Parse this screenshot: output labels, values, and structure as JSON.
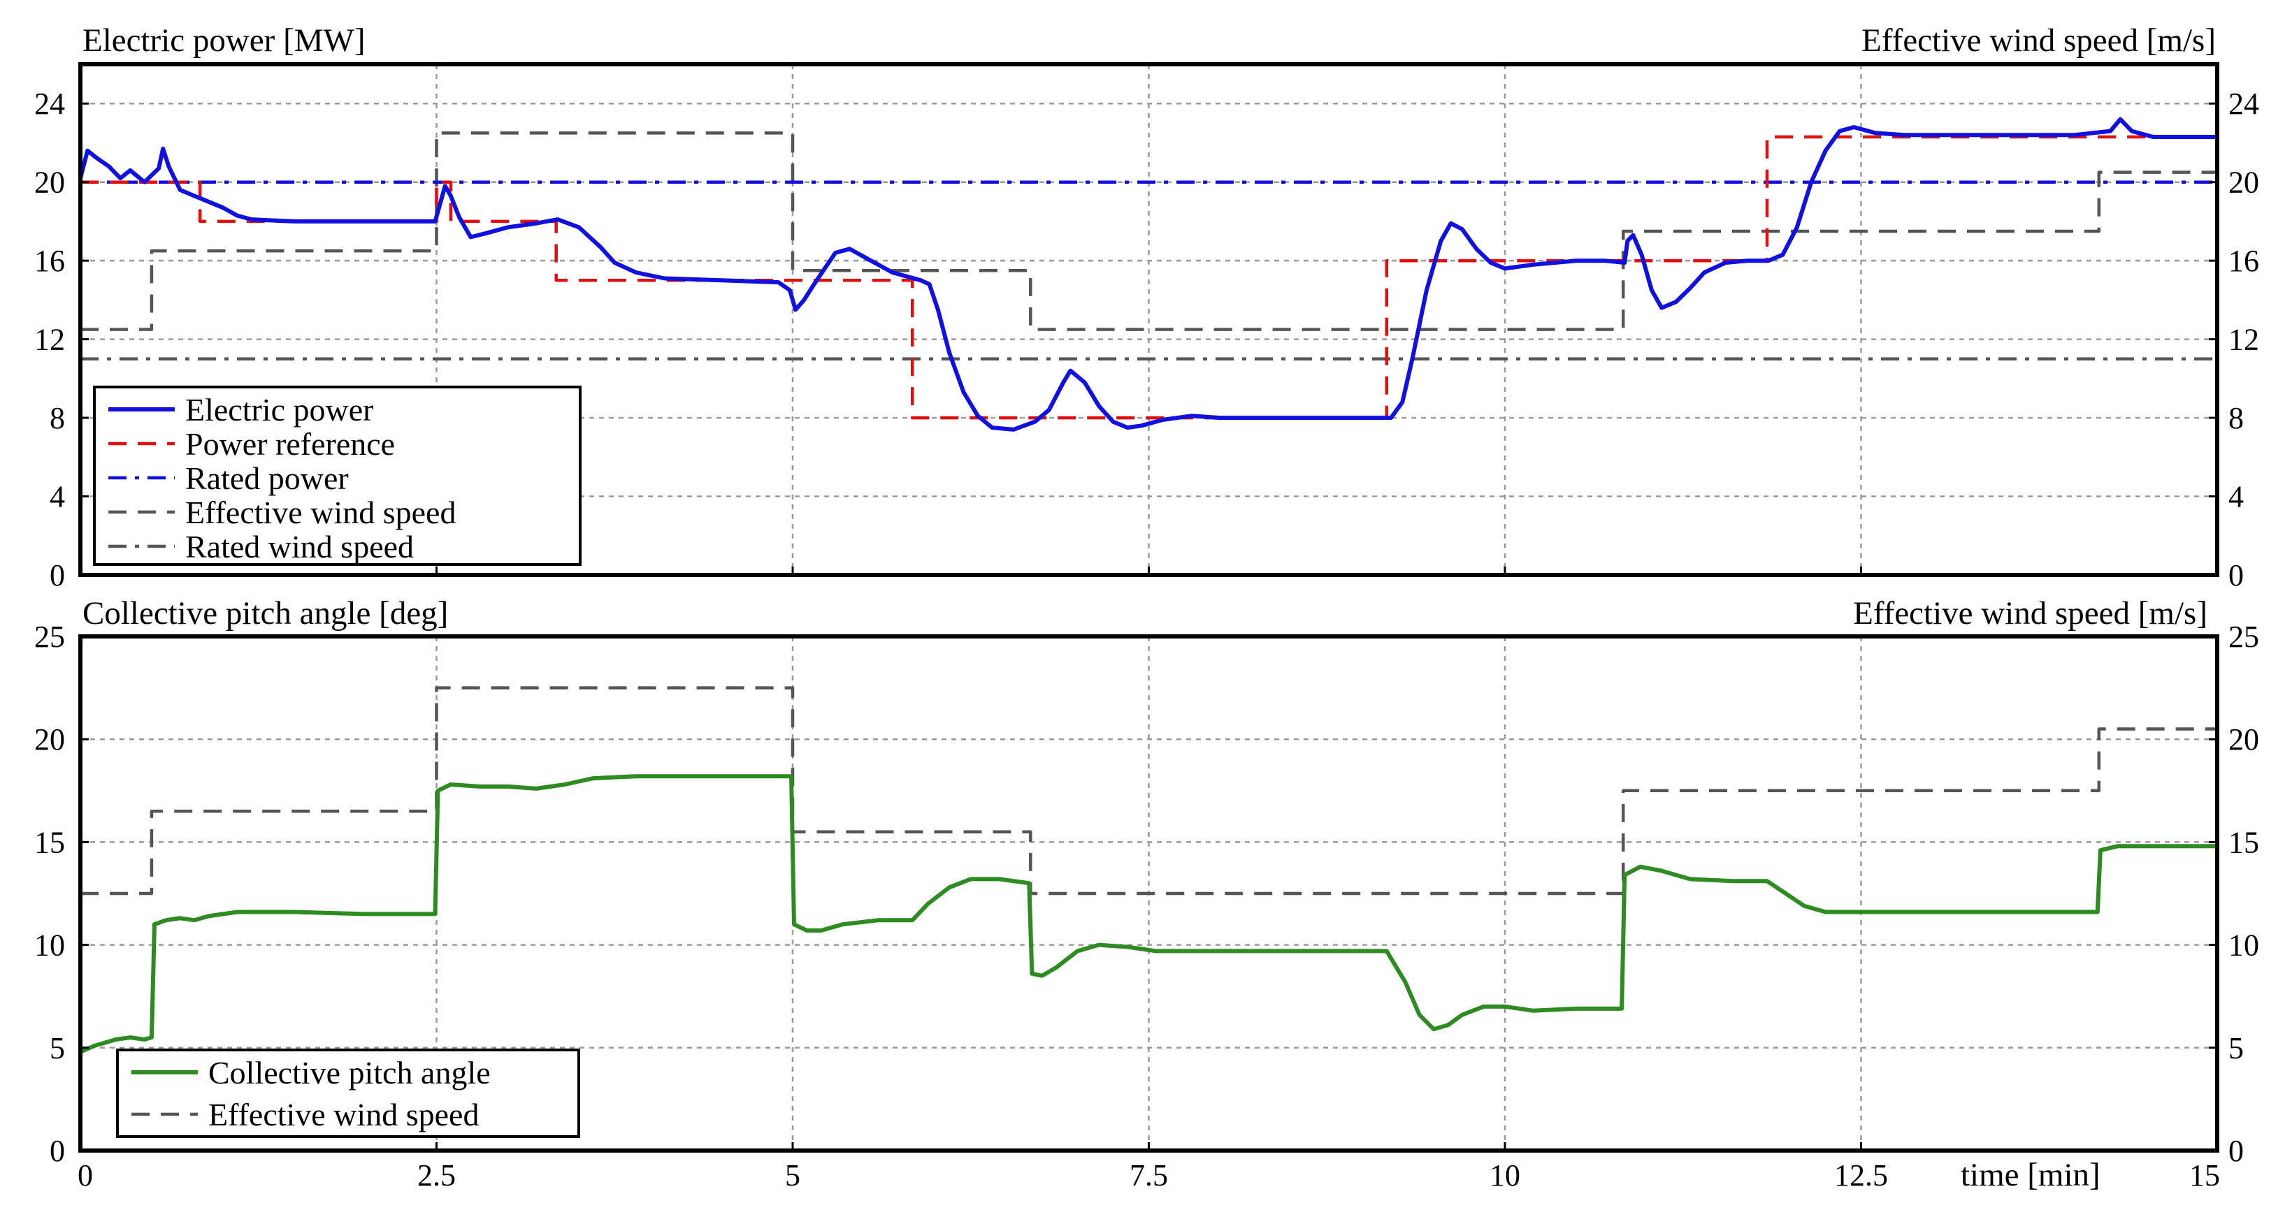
{
  "chart_data": [
    {
      "type": "line",
      "title_left": "Electric power [MW]",
      "title_right": "Effective wind speed [m/s]",
      "x_range": [
        0,
        15
      ],
      "y_range": [
        0,
        26
      ],
      "y_ticks": [
        0,
        4,
        8,
        12,
        16,
        20,
        24
      ],
      "y_tick_labels": [
        "0",
        "4",
        "8",
        "12",
        "16",
        "20",
        "24"
      ],
      "y_right_ticks": [
        0,
        4,
        8,
        12,
        16,
        20,
        24
      ],
      "y_right_tick_labels": [
        "0",
        "4",
        "8",
        "12",
        "16",
        "20",
        "24"
      ],
      "grid": true,
      "legend_position": "bottom-left",
      "series": [
        {
          "name": "Electric power",
          "color": "#1010e0",
          "style": "solid",
          "points": [
            [
              0,
              20.2
            ],
            [
              0.05,
              21.6
            ],
            [
              0.12,
              21.2
            ],
            [
              0.2,
              20.8
            ],
            [
              0.28,
              20.2
            ],
            [
              0.35,
              20.6
            ],
            [
              0.45,
              20.0
            ],
            [
              0.55,
              20.7
            ],
            [
              0.58,
              21.7
            ],
            [
              0.62,
              20.8
            ],
            [
              0.7,
              19.6
            ],
            [
              0.8,
              19.3
            ],
            [
              0.9,
              19.0
            ],
            [
              1.0,
              18.7
            ],
            [
              1.1,
              18.3
            ],
            [
              1.2,
              18.1
            ],
            [
              1.5,
              18.0
            ],
            [
              2.0,
              18.0
            ],
            [
              2.49,
              18.0
            ],
            [
              2.51,
              18.5
            ],
            [
              2.56,
              19.8
            ],
            [
              2.6,
              19.3
            ],
            [
              2.66,
              18.2
            ],
            [
              2.74,
              17.2
            ],
            [
              2.85,
              17.4
            ],
            [
              3.0,
              17.7
            ],
            [
              3.2,
              17.9
            ],
            [
              3.35,
              18.1
            ],
            [
              3.5,
              17.7
            ],
            [
              3.65,
              16.7
            ],
            [
              3.75,
              15.9
            ],
            [
              3.9,
              15.4
            ],
            [
              4.1,
              15.1
            ],
            [
              4.5,
              15.0
            ],
            [
              4.9,
              14.9
            ],
            [
              4.98,
              14.5
            ],
            [
              5.02,
              13.5
            ],
            [
              5.08,
              14.0
            ],
            [
              5.15,
              14.8
            ],
            [
              5.3,
              16.4
            ],
            [
              5.4,
              16.6
            ],
            [
              5.55,
              16.0
            ],
            [
              5.7,
              15.4
            ],
            [
              5.9,
              15.0
            ],
            [
              5.96,
              14.8
            ],
            [
              6.02,
              13.5
            ],
            [
              6.1,
              11.3
            ],
            [
              6.2,
              9.3
            ],
            [
              6.3,
              8.1
            ],
            [
              6.4,
              7.5
            ],
            [
              6.55,
              7.4
            ],
            [
              6.7,
              7.8
            ],
            [
              6.8,
              8.4
            ],
            [
              6.9,
              9.8
            ],
            [
              6.95,
              10.4
            ],
            [
              7.05,
              9.8
            ],
            [
              7.15,
              8.6
            ],
            [
              7.25,
              7.8
            ],
            [
              7.35,
              7.5
            ],
            [
              7.45,
              7.6
            ],
            [
              7.6,
              7.9
            ],
            [
              7.8,
              8.1
            ],
            [
              8.0,
              8.0
            ],
            [
              8.5,
              8.0
            ],
            [
              9.0,
              8.0
            ],
            [
              9.2,
              8.0
            ],
            [
              9.28,
              8.8
            ],
            [
              9.35,
              11.0
            ],
            [
              9.45,
              14.5
            ],
            [
              9.55,
              17.0
            ],
            [
              9.62,
              17.9
            ],
            [
              9.7,
              17.6
            ],
            [
              9.8,
              16.6
            ],
            [
              9.9,
              15.9
            ],
            [
              10.0,
              15.6
            ],
            [
              10.2,
              15.8
            ],
            [
              10.5,
              16.0
            ],
            [
              10.7,
              16.0
            ],
            [
              10.84,
              15.9
            ],
            [
              10.86,
              17.0
            ],
            [
              10.9,
              17.3
            ],
            [
              10.96,
              16.3
            ],
            [
              11.03,
              14.5
            ],
            [
              11.1,
              13.6
            ],
            [
              11.2,
              13.9
            ],
            [
              11.3,
              14.6
            ],
            [
              11.4,
              15.4
            ],
            [
              11.55,
              15.9
            ],
            [
              11.7,
              16.0
            ],
            [
              11.85,
              16.0
            ],
            [
              11.95,
              16.3
            ],
            [
              12.05,
              17.7
            ],
            [
              12.15,
              20.0
            ],
            [
              12.25,
              21.6
            ],
            [
              12.35,
              22.6
            ],
            [
              12.45,
              22.8
            ],
            [
              12.6,
              22.5
            ],
            [
              12.8,
              22.4
            ],
            [
              13.0,
              22.4
            ],
            [
              13.5,
              22.4
            ],
            [
              14.0,
              22.4
            ],
            [
              14.25,
              22.6
            ],
            [
              14.32,
              23.2
            ],
            [
              14.4,
              22.6
            ],
            [
              14.55,
              22.3
            ],
            [
              14.8,
              22.3
            ],
            [
              15.0,
              22.3
            ]
          ]
        },
        {
          "name": "Power reference",
          "color": "#e01010",
          "style": "dashed",
          "points": [
            [
              0,
              20
            ],
            [
              0.84,
              20
            ],
            [
              0.84,
              18
            ],
            [
              2.5,
              18
            ],
            [
              2.5,
              20
            ],
            [
              2.6,
              20
            ],
            [
              2.6,
              18
            ],
            [
              3.34,
              18
            ],
            [
              3.34,
              15
            ],
            [
              5.84,
              15
            ],
            [
              5.84,
              8
            ],
            [
              9.17,
              8
            ],
            [
              9.17,
              16
            ],
            [
              11.84,
              16
            ],
            [
              11.84,
              22.3
            ],
            [
              15,
              22.3
            ]
          ]
        },
        {
          "name": "Rated power",
          "color": "#1010e0",
          "style": "dashdot",
          "points": [
            [
              0,
              20
            ],
            [
              15,
              20
            ]
          ]
        },
        {
          "name": "Effective wind speed",
          "color": "#555555",
          "style": "dashed",
          "points": [
            [
              0,
              12.5
            ],
            [
              0.5,
              12.5
            ],
            [
              0.5,
              16.5
            ],
            [
              2.5,
              16.5
            ],
            [
              2.5,
              22.5
            ],
            [
              5.0,
              22.5
            ],
            [
              5.0,
              15.5
            ],
            [
              6.67,
              15.5
            ],
            [
              6.67,
              12.5
            ],
            [
              10.83,
              12.5
            ],
            [
              10.83,
              17.5
            ],
            [
              14.17,
              17.5
            ],
            [
              14.17,
              20.5
            ],
            [
              15,
              20.5
            ]
          ]
        },
        {
          "name": "Rated wind speed",
          "color": "#555555",
          "style": "dashdot",
          "points": [
            [
              0,
              11
            ],
            [
              15,
              11
            ]
          ]
        }
      ]
    },
    {
      "type": "line",
      "title_left": "Collective pitch angle [deg]",
      "title_right": "Effective wind speed [m/s]",
      "x_range": [
        0,
        15
      ],
      "y_range": [
        0,
        25
      ],
      "x_ticks": [
        0,
        2.5,
        5,
        7.5,
        10,
        12.5,
        15
      ],
      "x_tick_labels": [
        "0",
        "2.5",
        "5",
        "7.5",
        "10",
        "12.5",
        "15"
      ],
      "xlabel": "time [min]",
      "y_ticks": [
        0,
        5,
        10,
        15,
        20,
        25
      ],
      "y_tick_labels": [
        "0",
        "5",
        "10",
        "15",
        "20",
        "25"
      ],
      "y_right_ticks": [
        0,
        5,
        10,
        15,
        20,
        25
      ],
      "y_right_tick_labels": [
        "0",
        "5",
        "10",
        "15",
        "20",
        "25"
      ],
      "grid": true,
      "legend_position": "bottom-left",
      "series": [
        {
          "name": "Collective pitch angle",
          "color": "#2e8b22",
          "style": "solid",
          "points": [
            [
              0,
              4.8
            ],
            [
              0.1,
              5.1
            ],
            [
              0.25,
              5.4
            ],
            [
              0.35,
              5.5
            ],
            [
              0.45,
              5.4
            ],
            [
              0.5,
              5.5
            ],
            [
              0.52,
              11.0
            ],
            [
              0.6,
              11.2
            ],
            [
              0.7,
              11.3
            ],
            [
              0.8,
              11.2
            ],
            [
              0.9,
              11.4
            ],
            [
              1.1,
              11.6
            ],
            [
              1.5,
              11.6
            ],
            [
              2.0,
              11.5
            ],
            [
              2.49,
              11.5
            ],
            [
              2.51,
              17.5
            ],
            [
              2.6,
              17.8
            ],
            [
              2.8,
              17.7
            ],
            [
              3.0,
              17.7
            ],
            [
              3.2,
              17.6
            ],
            [
              3.4,
              17.8
            ],
            [
              3.6,
              18.1
            ],
            [
              3.9,
              18.2
            ],
            [
              4.5,
              18.2
            ],
            [
              4.99,
              18.2
            ],
            [
              5.01,
              11.0
            ],
            [
              5.1,
              10.7
            ],
            [
              5.2,
              10.7
            ],
            [
              5.35,
              11.0
            ],
            [
              5.6,
              11.2
            ],
            [
              5.84,
              11.2
            ],
            [
              5.95,
              12.0
            ],
            [
              6.1,
              12.8
            ],
            [
              6.25,
              13.2
            ],
            [
              6.45,
              13.2
            ],
            [
              6.66,
              13.0
            ],
            [
              6.68,
              8.6
            ],
            [
              6.75,
              8.5
            ],
            [
              6.85,
              8.9
            ],
            [
              7.0,
              9.7
            ],
            [
              7.15,
              10.0
            ],
            [
              7.35,
              9.9
            ],
            [
              7.55,
              9.7
            ],
            [
              8.0,
              9.7
            ],
            [
              8.5,
              9.7
            ],
            [
              9.17,
              9.7
            ],
            [
              9.3,
              8.2
            ],
            [
              9.4,
              6.6
            ],
            [
              9.5,
              5.9
            ],
            [
              9.6,
              6.1
            ],
            [
              9.7,
              6.6
            ],
            [
              9.85,
              7.0
            ],
            [
              10.0,
              7.0
            ],
            [
              10.2,
              6.8
            ],
            [
              10.5,
              6.9
            ],
            [
              10.82,
              6.9
            ],
            [
              10.84,
              13.4
            ],
            [
              10.95,
              13.8
            ],
            [
              11.1,
              13.6
            ],
            [
              11.3,
              13.2
            ],
            [
              11.6,
              13.1
            ],
            [
              11.84,
              13.1
            ],
            [
              11.95,
              12.6
            ],
            [
              12.1,
              11.9
            ],
            [
              12.25,
              11.6
            ],
            [
              12.5,
              11.6
            ],
            [
              13.0,
              11.6
            ],
            [
              13.5,
              11.6
            ],
            [
              14.16,
              11.6
            ],
            [
              14.18,
              14.6
            ],
            [
              14.3,
              14.8
            ],
            [
              14.6,
              14.8
            ],
            [
              15.0,
              14.8
            ]
          ]
        },
        {
          "name": "Effective wind speed",
          "color": "#555555",
          "style": "dashed",
          "points": [
            [
              0,
              12.5
            ],
            [
              0.5,
              12.5
            ],
            [
              0.5,
              16.5
            ],
            [
              2.5,
              16.5
            ],
            [
              2.5,
              22.5
            ],
            [
              5.0,
              22.5
            ],
            [
              5.0,
              15.5
            ],
            [
              6.67,
              15.5
            ],
            [
              6.67,
              12.5
            ],
            [
              10.83,
              12.5
            ],
            [
              10.83,
              17.5
            ],
            [
              14.17,
              17.5
            ],
            [
              14.17,
              20.5
            ],
            [
              15,
              20.5
            ]
          ]
        }
      ]
    }
  ]
}
